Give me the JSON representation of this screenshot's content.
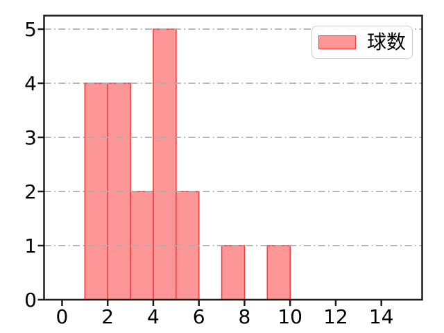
{
  "figure": {
    "background": "#ffffff",
    "title": "",
    "legend": {
      "label": "球数",
      "position": "upper right",
      "swatch_fill": "#fc9697",
      "swatch_edge": "#f4403f",
      "border_color": "#cccccc"
    },
    "colors": {
      "bar_fill": "#fc9697",
      "bar_edge": "#f4403f",
      "grid": "#adadad",
      "axis": "#1c1c1c",
      "tick_text": "#000000"
    }
  },
  "chart_data": {
    "type": "bar",
    "subtype": "histogram",
    "title": "",
    "xlabel": "",
    "ylabel": "",
    "series": [
      {
        "name": "球数",
        "bin_edges": [
          1,
          2,
          3,
          4,
          5,
          6,
          7,
          8,
          9,
          10
        ],
        "counts": [
          4,
          4,
          2,
          5,
          2,
          0,
          1,
          0,
          1
        ]
      }
    ],
    "xticks": [
      0,
      2,
      4,
      6,
      8,
      10,
      12,
      14
    ],
    "yticks": [
      0,
      1,
      2,
      3,
      4,
      5
    ],
    "xlim": [
      -0.79,
      15.79
    ],
    "ylim": [
      0,
      5.25
    ],
    "grid": "horizontal",
    "grid_style": "dash-dot",
    "legend_position": "upper right"
  }
}
